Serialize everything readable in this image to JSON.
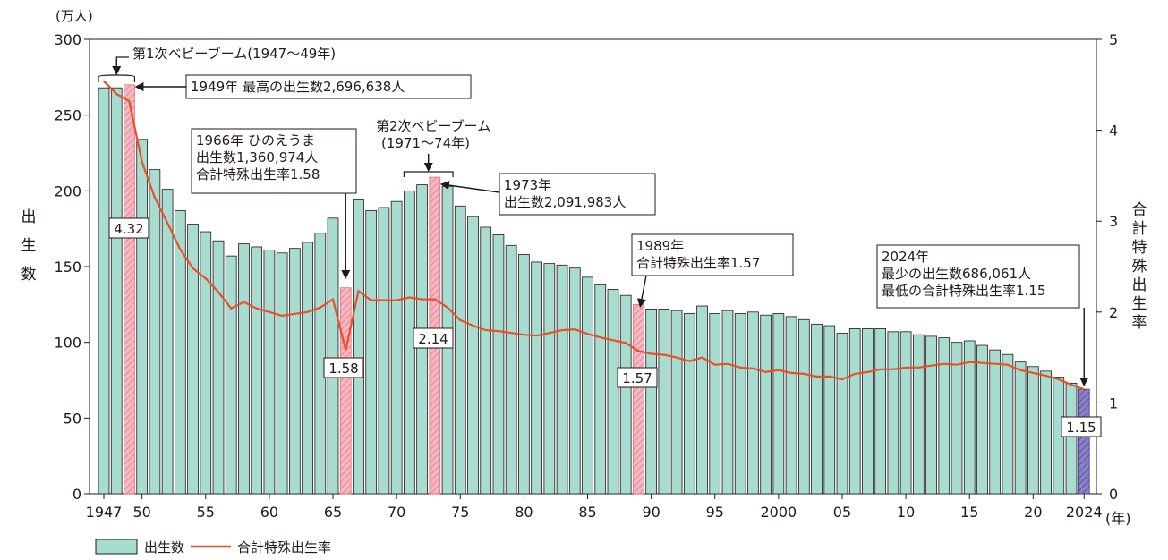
{
  "chart_data": {
    "type": "bar",
    "x": [
      1947,
      1948,
      1949,
      1950,
      1951,
      1952,
      1953,
      1954,
      1955,
      1956,
      1957,
      1958,
      1959,
      1960,
      1961,
      1962,
      1963,
      1964,
      1965,
      1966,
      1967,
      1968,
      1969,
      1970,
      1971,
      1972,
      1973,
      1974,
      1975,
      1976,
      1977,
      1978,
      1979,
      1980,
      1981,
      1982,
      1983,
      1984,
      1985,
      1986,
      1987,
      1988,
      1989,
      1990,
      1991,
      1992,
      1993,
      1994,
      1995,
      1996,
      1997,
      1998,
      1999,
      2000,
      2001,
      2002,
      2003,
      2004,
      2005,
      2006,
      2007,
      2008,
      2009,
      2010,
      2011,
      2012,
      2013,
      2014,
      2015,
      2016,
      2017,
      2018,
      2019,
      2020,
      2021,
      2022,
      2023,
      2024
    ],
    "x_tick_labels": [
      {
        "year": 1947,
        "label": "1947"
      },
      {
        "year": 1950,
        "label": "50"
      },
      {
        "year": 1955,
        "label": "55"
      },
      {
        "year": 1960,
        "label": "60"
      },
      {
        "year": 1965,
        "label": "65"
      },
      {
        "year": 1970,
        "label": "70"
      },
      {
        "year": 1975,
        "label": "75"
      },
      {
        "year": 1980,
        "label": "80"
      },
      {
        "year": 1985,
        "label": "85"
      },
      {
        "year": 1990,
        "label": "90"
      },
      {
        "year": 1995,
        "label": "95"
      },
      {
        "year": 2000,
        "label": "2000"
      },
      {
        "year": 2005,
        "label": "05"
      },
      {
        "year": 2010,
        "label": "10"
      },
      {
        "year": 2015,
        "label": "15"
      },
      {
        "year": 2020,
        "label": "20"
      },
      {
        "year": 2024,
        "label": "2024"
      }
    ],
    "x_unit": "(年)",
    "series": [
      {
        "name": "出生数",
        "kind": "bar",
        "axis": "left",
        "color": "#a8dcd0",
        "values": [
          268,
          268,
          270,
          234,
          214,
          201,
          187,
          178,
          173,
          167,
          157,
          165,
          163,
          161,
          159,
          162,
          166,
          172,
          182,
          136,
          194,
          187,
          189,
          193,
          200,
          204,
          209,
          203,
          190,
          183,
          176,
          171,
          164,
          158,
          153,
          152,
          151,
          149,
          143,
          138,
          135,
          131,
          125,
          122,
          122,
          121,
          119,
          124,
          119,
          121,
          119,
          120,
          118,
          119,
          117,
          115,
          112,
          111,
          106,
          109,
          109,
          109,
          107,
          107,
          105,
          104,
          103,
          100,
          101,
          98,
          95,
          92,
          87,
          84,
          81,
          77,
          73,
          69
        ]
      },
      {
        "name": "合計特殊出生率",
        "kind": "line",
        "axis": "right",
        "color": "#e8502a",
        "values": [
          4.54,
          4.4,
          4.32,
          3.65,
          3.26,
          2.98,
          2.69,
          2.48,
          2.37,
          2.22,
          2.04,
          2.11,
          2.04,
          2.0,
          1.96,
          1.98,
          2.0,
          2.05,
          2.14,
          1.58,
          2.23,
          2.13,
          2.13,
          2.13,
          2.16,
          2.14,
          2.14,
          2.05,
          1.91,
          1.85,
          1.8,
          1.79,
          1.77,
          1.75,
          1.74,
          1.77,
          1.8,
          1.81,
          1.76,
          1.72,
          1.69,
          1.66,
          1.57,
          1.54,
          1.53,
          1.5,
          1.46,
          1.5,
          1.42,
          1.43,
          1.39,
          1.38,
          1.34,
          1.36,
          1.33,
          1.32,
          1.29,
          1.29,
          1.26,
          1.32,
          1.34,
          1.37,
          1.37,
          1.39,
          1.39,
          1.41,
          1.43,
          1.42,
          1.45,
          1.44,
          1.43,
          1.42,
          1.36,
          1.33,
          1.3,
          1.26,
          1.2,
          1.15
        ]
      }
    ],
    "highlight_years": [
      1949,
      1966,
      1973,
      1989
    ],
    "final_year": 2024,
    "highlight_color": "#f5b9c2",
    "highlight_stroke": "#e86a80",
    "final_color": "#8a82c4",
    "final_stroke": "#3b3486",
    "y_left": {
      "label": "出生数",
      "unit": "(万人)",
      "ylim": [
        0,
        300
      ],
      "ticks": [
        0,
        50,
        100,
        150,
        200,
        250,
        300
      ]
    },
    "y_right": {
      "label": "合計特殊出生率",
      "ylim": [
        0,
        5
      ],
      "ticks": [
        0,
        1,
        2,
        3,
        4,
        5
      ]
    },
    "annotations": {
      "boom1": "第1次ベビーブーム(1947〜49年)",
      "max1949": "1949年 最高の出生数2,696,638人",
      "hinoe": [
        "1966年 ひのえうま",
        "出生数1,360,974人",
        "合計特殊出生率1.58"
      ],
      "boom2": [
        "第2次ベビーブーム",
        "(1971〜74年)"
      ],
      "y1973": [
        "1973年",
        "出生数2,091,983人"
      ],
      "y1989": [
        "1989年",
        "合計特殊出生率1.57"
      ],
      "y2024": [
        "2024年",
        "最少の出生数686,061人",
        "最低の合計特殊出生率1.15"
      ]
    },
    "rate_labels": [
      {
        "year": 1949,
        "text": "4.32"
      },
      {
        "year": 1966,
        "text": "1.58"
      },
      {
        "year": 1973,
        "text": "2.14"
      },
      {
        "year": 1989,
        "text": "1.57"
      },
      {
        "year": 2024,
        "text": "1.15"
      }
    ],
    "legend": {
      "bar": "出生数",
      "line": "合計特殊出生率"
    }
  }
}
